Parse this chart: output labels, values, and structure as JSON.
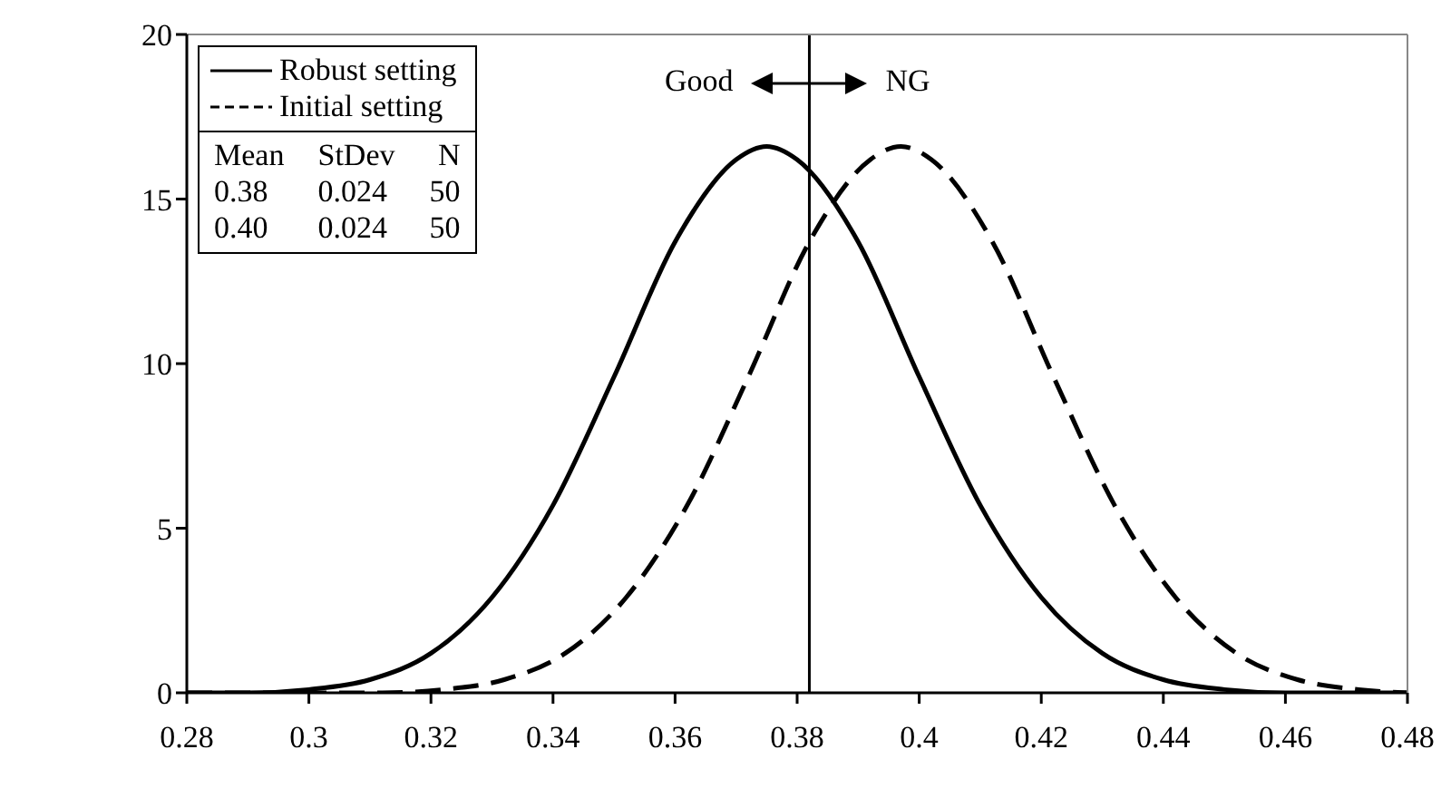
{
  "chart_data": {
    "type": "line",
    "xlim": [
      0.28,
      0.48
    ],
    "xticks": [
      0.28,
      0.3,
      0.32,
      0.34,
      0.36,
      0.38,
      0.4,
      0.42,
      0.44,
      0.46,
      0.48
    ],
    "ylim": [
      0,
      20
    ],
    "yticks": [
      0,
      5,
      10,
      15,
      20
    ],
    "legend": "top left",
    "marker": "none",
    "series": [
      {
        "name": "Robust setting",
        "color": "#000000",
        "line_style": "solid",
        "x": [
          0.28,
          0.29,
          0.3,
          0.31,
          0.32,
          0.33,
          0.34,
          0.35,
          0.36,
          0.37,
          0.375,
          0.38,
          0.39,
          0.4,
          0.41,
          0.42,
          0.43,
          0.44,
          0.45,
          0.46,
          0.47,
          0.48
        ],
        "values": [
          0,
          0,
          0.1,
          0.4,
          1.2,
          2.9,
          5.7,
          9.6,
          13.7,
          16.2,
          16.6,
          16.2,
          13.7,
          9.6,
          5.7,
          2.9,
          1.2,
          0.4,
          0.1,
          0,
          0,
          0
        ]
      },
      {
        "name": "Initial setting",
        "color": "#000000",
        "line_style": "dashed",
        "x": [
          0.28,
          0.312,
          0.322,
          0.332,
          0.342,
          0.352,
          0.362,
          0.372,
          0.382,
          0.392,
          0.397,
          0.402,
          0.412,
          0.422,
          0.432,
          0.442,
          0.452,
          0.462,
          0.472,
          0.48
        ],
        "values": [
          0,
          0,
          0.1,
          0.4,
          1.2,
          2.9,
          5.7,
          9.6,
          13.7,
          16.2,
          16.6,
          16.2,
          13.7,
          9.6,
          5.7,
          2.9,
          1.2,
          0.4,
          0.1,
          0
        ]
      }
    ],
    "ref_lines": [
      {
        "axis": "x",
        "value": 0.382,
        "color": "#000000",
        "line_style": "solid"
      }
    ],
    "annotations": [
      "Mean",
      "StDev",
      "N",
      "0.38",
      "0.024",
      "50",
      "0.40",
      "0.024",
      "50",
      "Good",
      "NG"
    ]
  }
}
